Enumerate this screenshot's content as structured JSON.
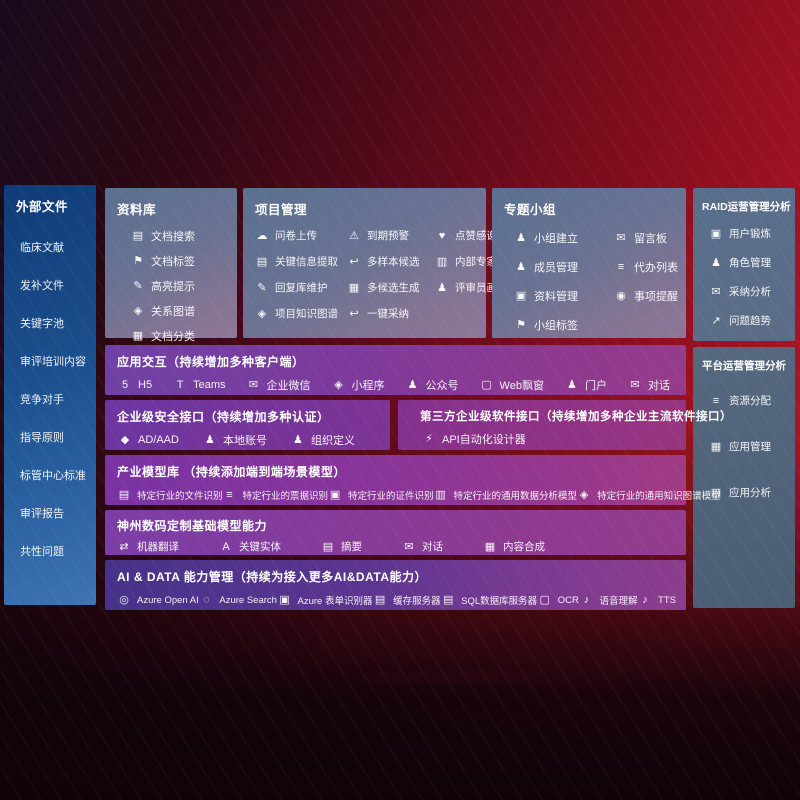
{
  "colors": {
    "background_red": "#8c0f1d",
    "sidebar_blue": "#1c4f8e",
    "panel_gray_blue": "#6b7292",
    "row_purple": "#7e3a9a",
    "ai_row_indigo": "#463289",
    "text": "#ffffff"
  },
  "sidebar": {
    "title": "外部文件",
    "items": [
      {
        "label": "临床文献"
      },
      {
        "label": "发补文件"
      },
      {
        "label": "关键字池"
      },
      {
        "label": "审评培训内容"
      },
      {
        "label": "竞争对手"
      },
      {
        "label": "指导原则"
      },
      {
        "label": "标管中心标准"
      },
      {
        "label": "审评报告"
      },
      {
        "label": "共性问题"
      }
    ]
  },
  "panels": {
    "repo": {
      "title": "资料库",
      "items": [
        {
          "label": "文档搜索",
          "icon": "doc-search-icon"
        },
        {
          "label": "文档标签",
          "icon": "doc-tag-icon"
        },
        {
          "label": "高亮提示",
          "icon": "highlight-pen-icon"
        },
        {
          "label": "关系图谱",
          "icon": "relation-graph-icon"
        },
        {
          "label": "文档分类",
          "icon": "doc-classify-icon"
        }
      ]
    },
    "project": {
      "title": "项目管理",
      "items": [
        {
          "label": "问卷上传",
          "icon": "questionnaire-upload-icon"
        },
        {
          "label": "到期预警",
          "icon": "due-alert-icon"
        },
        {
          "label": "点赞感谢",
          "icon": "thumbs-up-icon"
        },
        {
          "label": "关键信息提取",
          "icon": "key-info-extract-icon"
        },
        {
          "label": "多样本候选",
          "icon": "multi-sample-icon"
        },
        {
          "label": "内部专家排名",
          "icon": "expert-ranking-icon"
        },
        {
          "label": "回复库维护",
          "icon": "reply-maintain-icon"
        },
        {
          "label": "多候选生成",
          "icon": "multi-candidate-icon"
        },
        {
          "label": "评审员画像",
          "icon": "reviewer-portrait-icon"
        },
        {
          "label": "项目知识图谱",
          "icon": "project-knowledge-graph-icon"
        },
        {
          "label": "一键采纳",
          "icon": "one-click-adopt-icon"
        }
      ]
    },
    "topic": {
      "title": "专题小组",
      "items": [
        {
          "label": "小组建立",
          "icon": "group-create-icon"
        },
        {
          "label": "留言板",
          "icon": "message-board-icon"
        },
        {
          "label": "成员管理",
          "icon": "member-manage-icon"
        },
        {
          "label": "代办列表",
          "icon": "todo-list-icon"
        },
        {
          "label": "资料管理",
          "icon": "material-manage-icon"
        },
        {
          "label": "事项提醒",
          "icon": "reminder-bell-icon"
        },
        {
          "label": "小组标签",
          "icon": "group-tag-icon"
        }
      ]
    },
    "raid": {
      "title": "RAID运营管理分析",
      "items": [
        {
          "label": "用户锻炼",
          "icon": "user-training-icon"
        },
        {
          "label": "角色管理",
          "icon": "role-manage-icon"
        },
        {
          "label": "采纳分析",
          "icon": "adoption-analysis-icon"
        },
        {
          "label": "问题趋势",
          "icon": "issue-trend-icon"
        }
      ]
    },
    "platform": {
      "title": "平台运营管理分析",
      "items": [
        {
          "label": "资源分配",
          "icon": "resource-allocation-icon"
        },
        {
          "label": "应用管理",
          "icon": "app-manage-icon"
        },
        {
          "label": "应用分析",
          "icon": "app-analysis-icon"
        }
      ]
    }
  },
  "rows": {
    "interaction": {
      "title": "应用交互（持续增加多种客户端）",
      "items": [
        {
          "label": "H5",
          "icon": "h5-icon"
        },
        {
          "label": "Teams",
          "icon": "teams-icon"
        },
        {
          "label": "企业微信",
          "icon": "wecom-icon"
        },
        {
          "label": "小程序",
          "icon": "miniprogram-icon"
        },
        {
          "label": "公众号",
          "icon": "official-account-icon"
        },
        {
          "label": "Web飘窗",
          "icon": "web-popup-icon"
        },
        {
          "label": "门户",
          "icon": "portal-icon"
        },
        {
          "label": "对话",
          "icon": "chat-icon"
        }
      ]
    },
    "security": {
      "title": "企业级安全接口（持续增加多种认证）",
      "items": [
        {
          "label": "AD/AAD",
          "icon": "ad-aad-icon"
        },
        {
          "label": "本地账号",
          "icon": "local-account-icon"
        },
        {
          "label": "组织定义",
          "icon": "org-definition-icon"
        }
      ]
    },
    "thirdparty": {
      "title": "第三方企业级软件接口（持续增加多种企业主流软件接口）",
      "items": [
        {
          "label": "API自动化设计器",
          "icon": "api-designer-icon"
        }
      ]
    },
    "industry_models": {
      "title": "产业模型库 （持续添加端到端场景模型）",
      "items": [
        {
          "label": "特定行业的文件识别",
          "icon": "file-recognition-icon"
        },
        {
          "label": "特定行业的票据识别",
          "icon": "receipt-recognition-icon"
        },
        {
          "label": "特定行业的证件识别",
          "icon": "certificate-recognition-icon"
        },
        {
          "label": "特定行业的通用数据分析模型",
          "icon": "data-analysis-model-icon"
        },
        {
          "label": "特定行业的通用知识图谱模型",
          "icon": "knowledge-graph-model-icon"
        }
      ]
    },
    "base_models": {
      "title": "神州数码定制基础模型能力",
      "items": [
        {
          "label": "机器翻译",
          "icon": "machine-translation-icon"
        },
        {
          "label": "关键实体",
          "icon": "key-entity-icon"
        },
        {
          "label": "摘要",
          "icon": "summary-icon"
        },
        {
          "label": "对话",
          "icon": "dialog-icon"
        },
        {
          "label": "内容合成",
          "icon": "content-synthesis-icon"
        }
      ]
    },
    "ai_data": {
      "title": "AI & DATA 能力管理（持续为接入更多AI&DATA能力）",
      "items": [
        {
          "label": "Azure Open AI",
          "icon": "azure-openai-icon"
        },
        {
          "label": "Azure Search",
          "icon": "azure-search-icon"
        },
        {
          "label": "Azure 表单识别器",
          "icon": "azure-form-recognizer-icon"
        },
        {
          "label": "缓存服务器",
          "icon": "cache-server-icon"
        },
        {
          "label": "SQL数据库服务器",
          "icon": "sql-database-icon"
        },
        {
          "label": "OCR",
          "icon": "ocr-icon"
        },
        {
          "label": "语音理解",
          "icon": "speech-understanding-icon"
        },
        {
          "label": "TTS",
          "icon": "tts-icon"
        }
      ]
    }
  }
}
